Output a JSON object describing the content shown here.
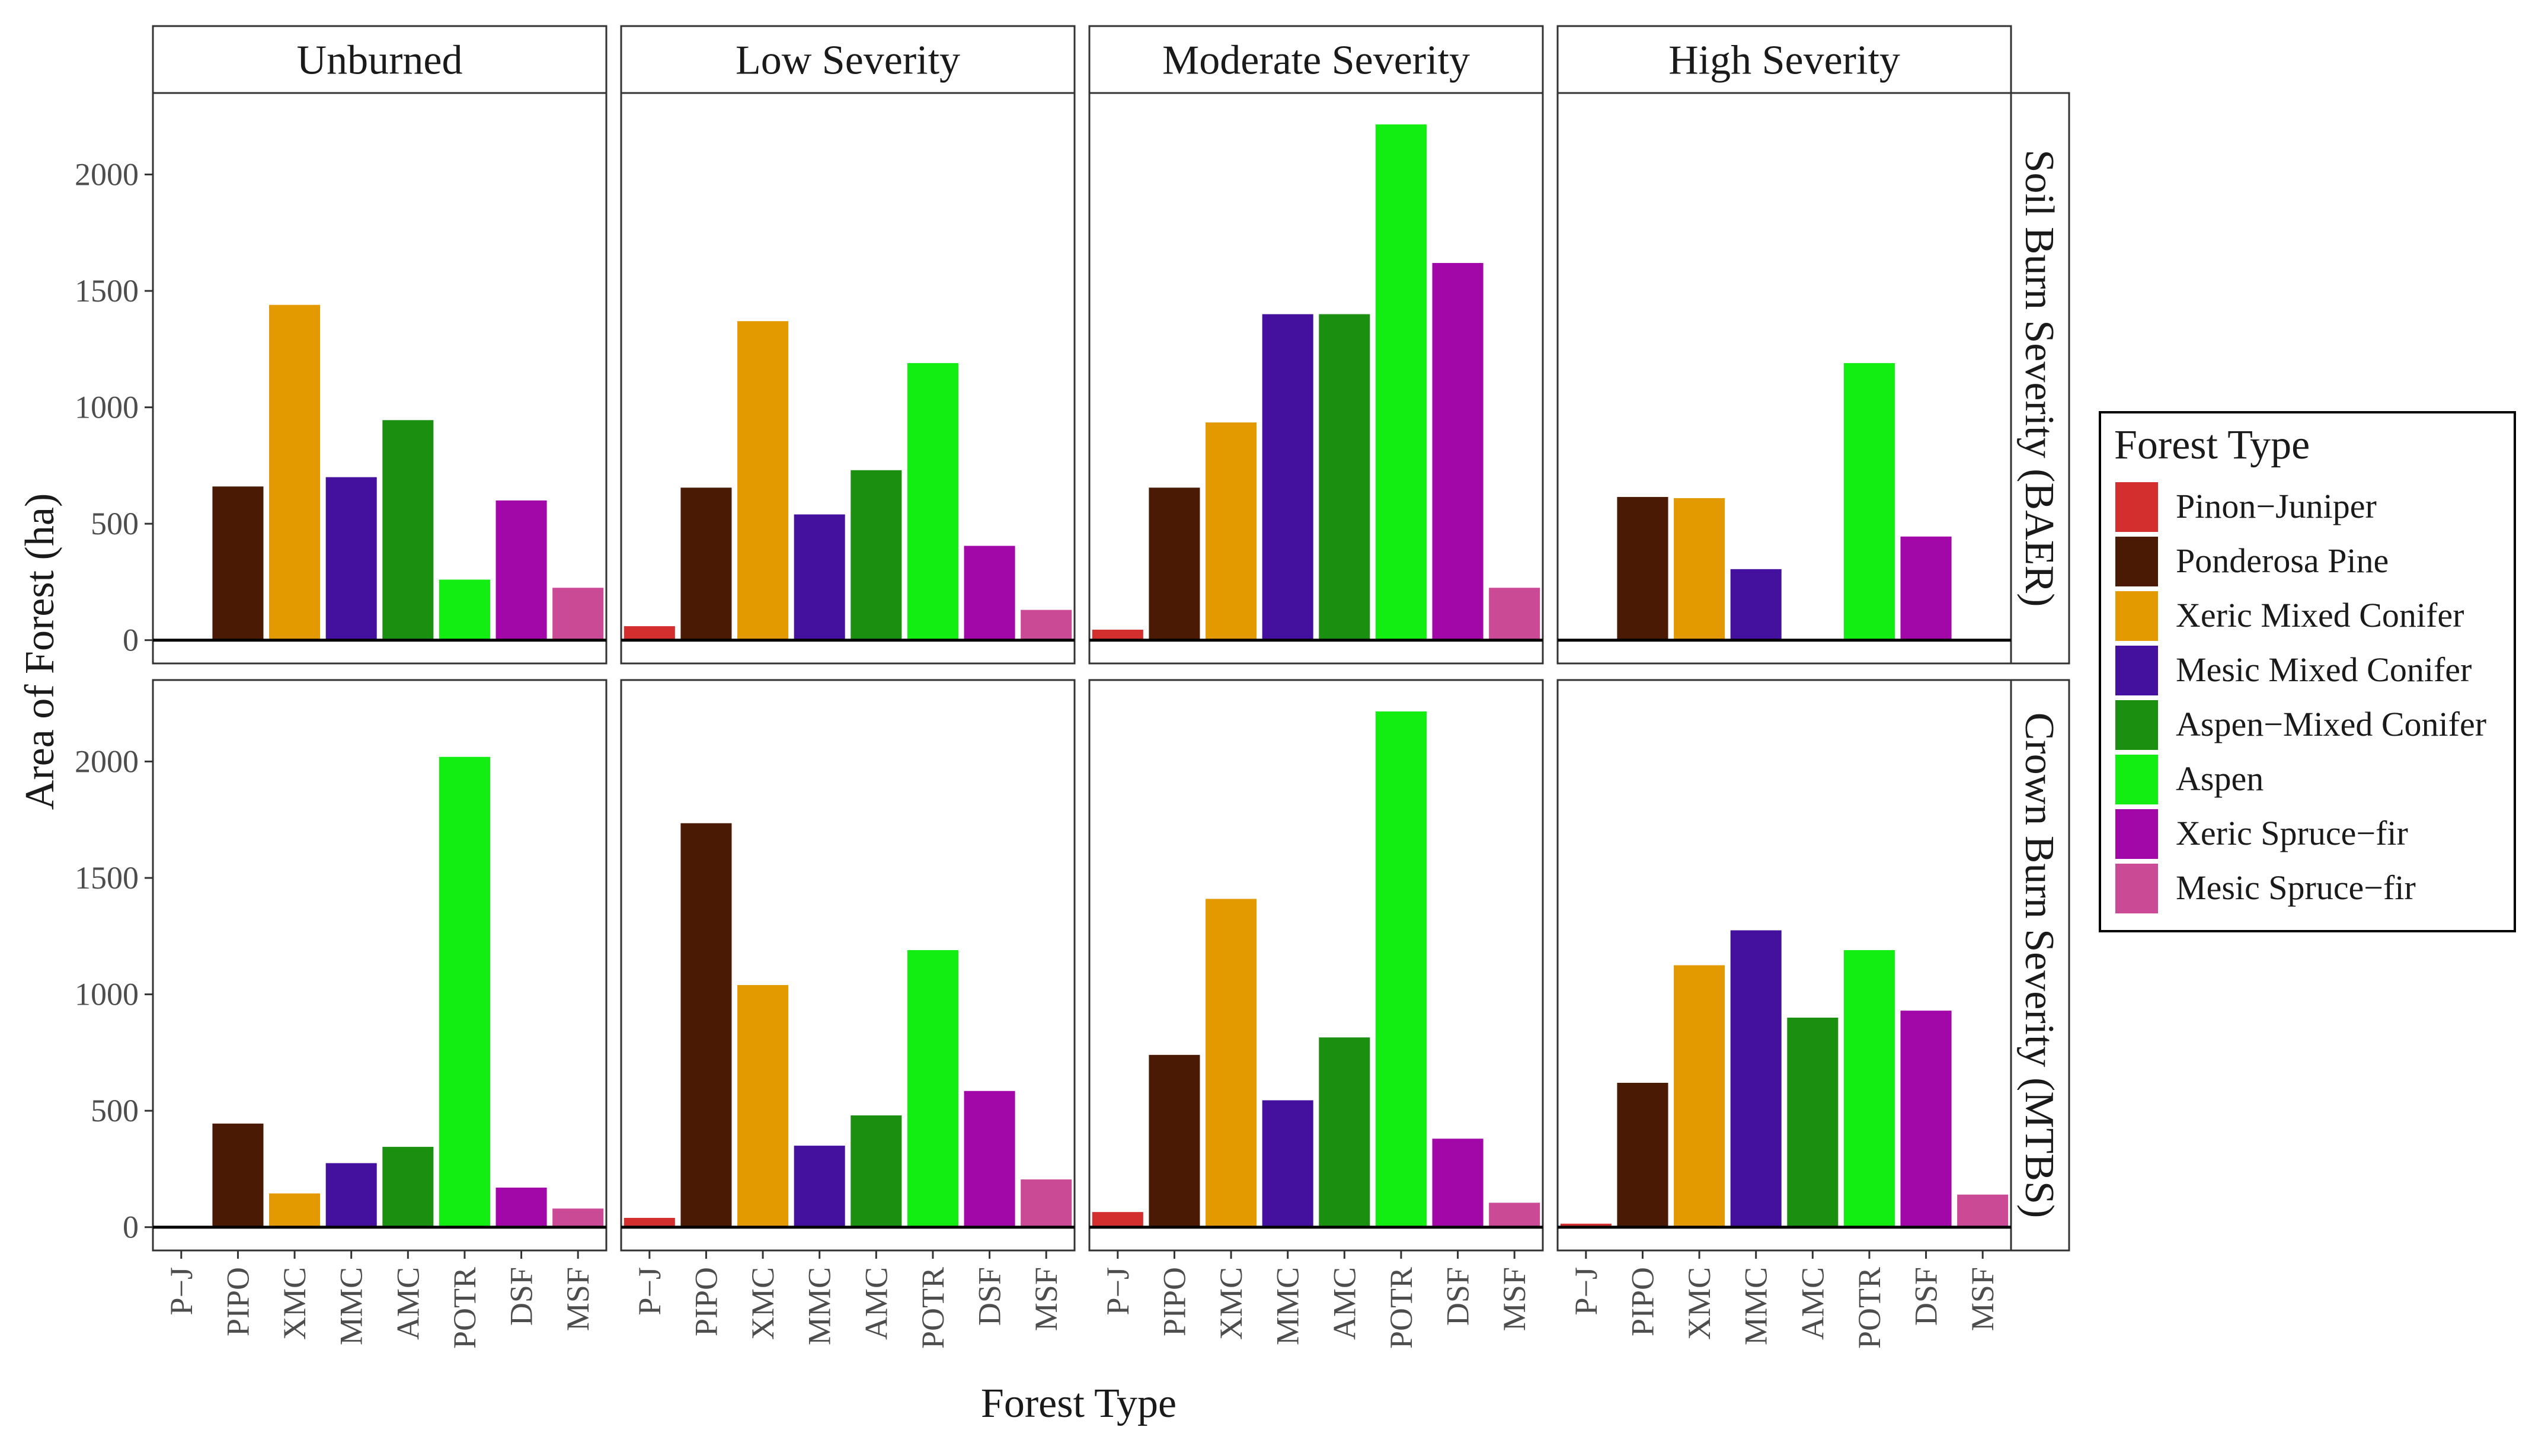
{
  "chart_data": {
    "type": "bar",
    "xlabel": "Forest Type",
    "ylabel": "Area of Forest (ha)",
    "ylim": [
      -100,
      2350
    ],
    "yticks": [
      0,
      500,
      1000,
      1500,
      2000
    ],
    "categories": [
      "P−J",
      "PIPO",
      "XMC",
      "MMC",
      "AMC",
      "POTR",
      "DSF",
      "MSF"
    ],
    "columns": [
      "Unburned",
      "Low Severity",
      "Moderate Severity",
      "High Severity"
    ],
    "rows": [
      "Soil Burn Severity (BAER)",
      "Crown Burn Severity (MTBS)"
    ],
    "legend": {
      "title": "Forest Type",
      "position": "right",
      "items": [
        {
          "label": "Pinon−Juniper",
          "color": "#d32f2f"
        },
        {
          "label": "Ponderosa Pine",
          "color": "#4a1a05"
        },
        {
          "label": "Xeric Mixed Conifer",
          "color": "#e39a00"
        },
        {
          "label": "Mesic Mixed Conifer",
          "color": "#44109e"
        },
        {
          "label": "Aspen−Mixed Conifer",
          "color": "#1a8f10"
        },
        {
          "label": "Aspen",
          "color": "#12ee12"
        },
        {
          "label": "Xeric Spruce−fir",
          "color": "#a208a8"
        },
        {
          "label": "Mesic Spruce−fir",
          "color": "#ca4a96"
        }
      ]
    },
    "panels": [
      {
        "row": "Soil Burn Severity (BAER)",
        "col": "Unburned",
        "values": [
          0,
          660,
          1440,
          700,
          945,
          260,
          600,
          225
        ]
      },
      {
        "row": "Soil Burn Severity (BAER)",
        "col": "Low Severity",
        "values": [
          60,
          655,
          1370,
          540,
          730,
          1190,
          405,
          130
        ]
      },
      {
        "row": "Soil Burn Severity (BAER)",
        "col": "Moderate Severity",
        "values": [
          45,
          655,
          935,
          1400,
          1400,
          2215,
          1620,
          225
        ]
      },
      {
        "row": "Soil Burn Severity (BAER)",
        "col": "High Severity",
        "values": [
          0,
          615,
          610,
          305,
          0,
          1190,
          445,
          0
        ]
      },
      {
        "row": "Crown Burn Severity (MTBS)",
        "col": "Unburned",
        "values": [
          0,
          445,
          145,
          275,
          345,
          2020,
          170,
          80
        ]
      },
      {
        "row": "Crown Burn Severity (MTBS)",
        "col": "Low Severity",
        "values": [
          40,
          1735,
          1040,
          350,
          480,
          1190,
          585,
          205
        ]
      },
      {
        "row": "Crown Burn Severity (MTBS)",
        "col": "Moderate Severity",
        "values": [
          65,
          740,
          1410,
          545,
          815,
          2215,
          380,
          105
        ]
      },
      {
        "row": "Crown Burn Severity (MTBS)",
        "col": "High Severity",
        "values": [
          15,
          620,
          1125,
          1275,
          900,
          1190,
          930,
          140
        ]
      }
    ]
  }
}
